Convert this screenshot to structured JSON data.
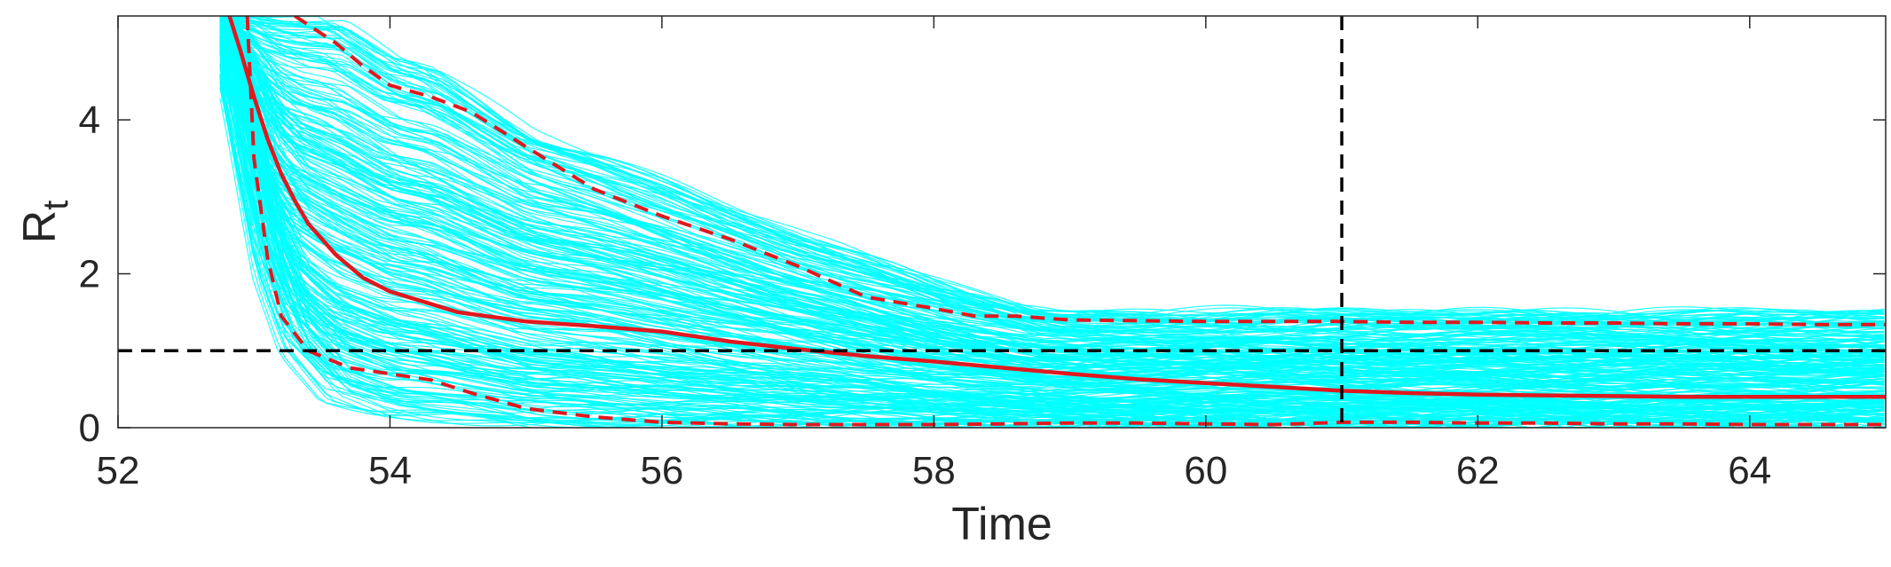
{
  "chart_data": {
    "type": "line",
    "title": "",
    "xlabel": "Time",
    "ylabel": {
      "main": "R",
      "subscript": "t"
    },
    "xlim": [
      52,
      65
    ],
    "ylim": [
      0,
      5.35
    ],
    "xticks": [
      52,
      54,
      56,
      58,
      60,
      62,
      64
    ],
    "yticks": [
      0,
      2,
      4
    ],
    "grid": false,
    "legend": "none",
    "colors": {
      "samples": "#00ffff",
      "median": "#e0191f",
      "interval": "#e0191f",
      "reference": "#000000",
      "axes": "#262626"
    },
    "reference_lines": {
      "horizontal_y": 1,
      "vertical_x": 61
    },
    "median": {
      "x": [
        52.82,
        52.9,
        53.0,
        53.1,
        53.2,
        53.3,
        53.4,
        53.6,
        53.8,
        54.0,
        54.5,
        55.0,
        55.5,
        56.0,
        56.5,
        57.0,
        57.5,
        58.0,
        58.5,
        59.0,
        59.5,
        60.0,
        60.5,
        61.0,
        61.5,
        62.0,
        62.5,
        63.0,
        63.5,
        64.0,
        64.5,
        65.0
      ],
      "y": [
        5.35,
        4.9,
        4.3,
        3.75,
        3.3,
        2.95,
        2.65,
        2.25,
        1.95,
        1.77,
        1.5,
        1.38,
        1.32,
        1.25,
        1.12,
        1.02,
        0.93,
        0.86,
        0.78,
        0.7,
        0.63,
        0.58,
        0.53,
        0.48,
        0.45,
        0.43,
        0.42,
        0.41,
        0.4,
        0.4,
        0.4,
        0.4
      ]
    },
    "upper_bound": {
      "x": [
        53.3,
        53.6,
        53.8,
        54.0,
        54.3,
        54.6,
        55.0,
        55.5,
        56.0,
        56.5,
        57.0,
        57.5,
        58.0,
        58.3,
        58.6,
        59.0,
        59.5,
        60.0,
        60.5,
        61.0,
        61.5,
        62.0,
        62.5,
        63.0,
        63.5,
        64.0,
        64.5,
        65.0
      ],
      "y": [
        5.35,
        5.0,
        4.7,
        4.45,
        4.3,
        4.1,
        3.65,
        3.1,
        2.75,
        2.45,
        2.1,
        1.7,
        1.55,
        1.45,
        1.45,
        1.4,
        1.39,
        1.38,
        1.38,
        1.38,
        1.37,
        1.37,
        1.36,
        1.36,
        1.35,
        1.35,
        1.34,
        1.34
      ]
    },
    "lower_bound": {
      "x": [
        52.95,
        53.0,
        53.1,
        53.2,
        53.4,
        53.7,
        54.0,
        54.3,
        54.6,
        55.0,
        55.5,
        56.0,
        56.5,
        57.0,
        57.5,
        58.0,
        58.5,
        59.0,
        59.5,
        60.0,
        60.5,
        61.0,
        61.5,
        62.0,
        62.5,
        63.0,
        63.5,
        64.0,
        64.5,
        65.0
      ],
      "y": [
        5.35,
        3.5,
        2.2,
        1.45,
        1.0,
        0.78,
        0.7,
        0.62,
        0.45,
        0.25,
        0.14,
        0.07,
        0.05,
        0.04,
        0.04,
        0.04,
        0.05,
        0.06,
        0.06,
        0.05,
        0.04,
        0.07,
        0.07,
        0.06,
        0.06,
        0.05,
        0.05,
        0.04,
        0.04,
        0.04
      ]
    },
    "sample_ensemble": {
      "count": 280,
      "description_free_params": {
        "upper_envelope": {
          "x": [
            52.75,
            53.0,
            53.3,
            53.6,
            54.0,
            54.3,
            55.0,
            55.5,
            56.0,
            57.0,
            58.0,
            58.7,
            59.0,
            60.0,
            62.0,
            65.0
          ],
          "y": [
            5.35,
            5.35,
            5.35,
            5.35,
            4.85,
            4.7,
            3.9,
            3.6,
            3.25,
            2.5,
            1.9,
            1.55,
            1.5,
            1.5,
            1.5,
            1.5
          ]
        },
        "lower_envelope": {
          "x": [
            52.75,
            52.9,
            53.1,
            53.3,
            53.6,
            54.0,
            55.0,
            56.0,
            57.0,
            65.0
          ],
          "y": [
            5.35,
            4.0,
            2.0,
            1.0,
            0.4,
            0.2,
            0.02,
            0.0,
            0.0,
            0.0
          ]
        }
      }
    }
  }
}
